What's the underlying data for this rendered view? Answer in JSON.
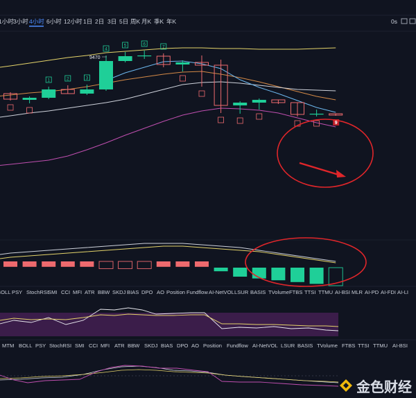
{
  "toolbar": {
    "timeframes": [
      "1小时",
      "3小时",
      "4小时",
      "6小时",
      "12小时",
      "1日",
      "2日",
      "3日",
      "5日",
      "周K",
      "月K",
      "季K",
      "年K"
    ],
    "active_timeframe": "4小时",
    "right_value": "0s"
  },
  "price_label": "9470",
  "td_labels_main": [
    {
      "text": "1",
      "kind": "green"
    },
    {
      "text": "2",
      "kind": "green"
    },
    {
      "text": "3",
      "kind": "green"
    },
    {
      "text": "4",
      "kind": "green"
    },
    {
      "text": "5",
      "kind": "green"
    },
    {
      "text": "6",
      "kind": "green"
    },
    {
      "text": "7",
      "kind": "green"
    },
    {
      "text": "8",
      "kind": "red"
    },
    {
      "text": "9",
      "kind": "red-filled"
    }
  ],
  "indicator_tabs_1": [
    "BOLL",
    "PSY",
    "StochRSI",
    "SMI",
    "CCI",
    "MFI",
    "ATR",
    "BBW",
    "SKDJ",
    "BIAS",
    "DPO",
    "AO",
    "Position",
    "Fundflow",
    "AI-NetVOL",
    "LSUR",
    "BASIS",
    "TVolume",
    "FTBS",
    "TTSI",
    "TTMU",
    "AI-BSI",
    "MLR",
    "AI-PD",
    "AI-FDI",
    "AI-LI"
  ],
  "indicator_tabs_2": [
    "MTM",
    "BOLL",
    "PSY",
    "StochRSI",
    "SMI",
    "CCI",
    "MFI",
    "ATR",
    "BBW",
    "SKDJ",
    "BIAS",
    "DPO",
    "AO",
    "Position",
    "Fundflow",
    "AI-NetVOL",
    "LSUR",
    "BASIS",
    "TVolume",
    "FTBS",
    "TTSI",
    "TTMU",
    "AI-BSI"
  ],
  "watermark": "金色财经",
  "colors": {
    "background": "#101420",
    "up": "#1fcf98",
    "down": "#ee6a6e",
    "ma_yellow": "#e5d46a",
    "ma_orange": "#d58a47",
    "ma_white": "#cfd3dc",
    "ma_blue": "#6db8ef",
    "ma_magenta": "#c04fb0",
    "annotation": "#e0262a",
    "hist_purple": "#3b1d4a"
  },
  "chart_data": {
    "type": "candlestick",
    "title": "",
    "visible_price_labels": [
      "9470"
    ],
    "candles": [
      {
        "o": 10,
        "h": 12,
        "l": 0,
        "c": 2
      },
      {
        "o": 1,
        "h": 6,
        "l": -4,
        "c": 4
      },
      {
        "o": 4,
        "h": 20,
        "l": 2,
        "c": 16
      },
      {
        "o": 16,
        "h": 22,
        "l": 10,
        "c": 10
      },
      {
        "o": 10,
        "h": 23,
        "l": 8,
        "c": 16
      },
      {
        "o": 16,
        "h": 65,
        "l": 14,
        "c": 57
      },
      {
        "o": 57,
        "h": 70,
        "l": 55,
        "c": 64
      },
      {
        "o": 64,
        "h": 72,
        "l": 60,
        "c": 65
      },
      {
        "o": 64,
        "h": 68,
        "l": 48,
        "c": 52
      },
      {
        "o": 52,
        "h": 58,
        "l": 42,
        "c": 55
      },
      {
        "o": 55,
        "h": 65,
        "l": 20,
        "c": 51
      },
      {
        "o": 51,
        "h": 59,
        "l": -18,
        "c": -7
      },
      {
        "o": -7,
        "h": -1,
        "l": -19,
        "c": -3
      },
      {
        "o": -3,
        "h": 3,
        "l": -13,
        "c": 1
      },
      {
        "o": 1,
        "h": 1,
        "l": -5,
        "c": -3
      },
      {
        "o": -3,
        "h": -3,
        "l": -23,
        "c": -20
      },
      {
        "o": -20,
        "h": -13,
        "l": -23,
        "c": -19
      },
      {
        "o": -19,
        "h": -19,
        "l": -22,
        "c": -21
      }
    ],
    "ma_yellow": [
      50,
      54,
      58,
      62,
      65,
      69,
      71,
      73,
      75,
      76,
      76,
      75,
      75,
      74,
      74,
      74,
      75,
      76
    ],
    "ma_orange": [
      8,
      11,
      13,
      16,
      20,
      25,
      30,
      34,
      38,
      41,
      42,
      38,
      33,
      27,
      20,
      13,
      6,
      1
    ],
    "ma_white": [
      -22,
      -18,
      -15,
      -11,
      -7,
      -3,
      2,
      9,
      16,
      23,
      26,
      27,
      25,
      22,
      19,
      16,
      15,
      14
    ],
    "ma_blue": [
      null,
      null,
      null,
      null,
      null,
      29,
      40,
      48,
      56,
      57,
      53,
      46,
      30,
      19,
      10,
      0,
      -10,
      -17
    ],
    "ma_magenta": [
      -92,
      -89,
      -86,
      -80,
      -71,
      -61,
      -50,
      -40,
      -30,
      -21,
      -15,
      -11,
      -12,
      -14,
      -18,
      -25,
      -32,
      -38
    ],
    "volume_histogram": [
      -3,
      -3,
      -3,
      -3,
      -3,
      -4,
      -4,
      -4,
      -3,
      -3,
      -3,
      2,
      5,
      6,
      7,
      8,
      9,
      10
    ],
    "volume_line_white": [
      15,
      16,
      17,
      18,
      19,
      20,
      21,
      22,
      22,
      22,
      21,
      20,
      19,
      17,
      15,
      13,
      11,
      9
    ],
    "volume_line_yellow": [
      12,
      13,
      14,
      15,
      16,
      17,
      18,
      19,
      20,
      20,
      19,
      18,
      17,
      16,
      14,
      12,
      10,
      8
    ]
  }
}
